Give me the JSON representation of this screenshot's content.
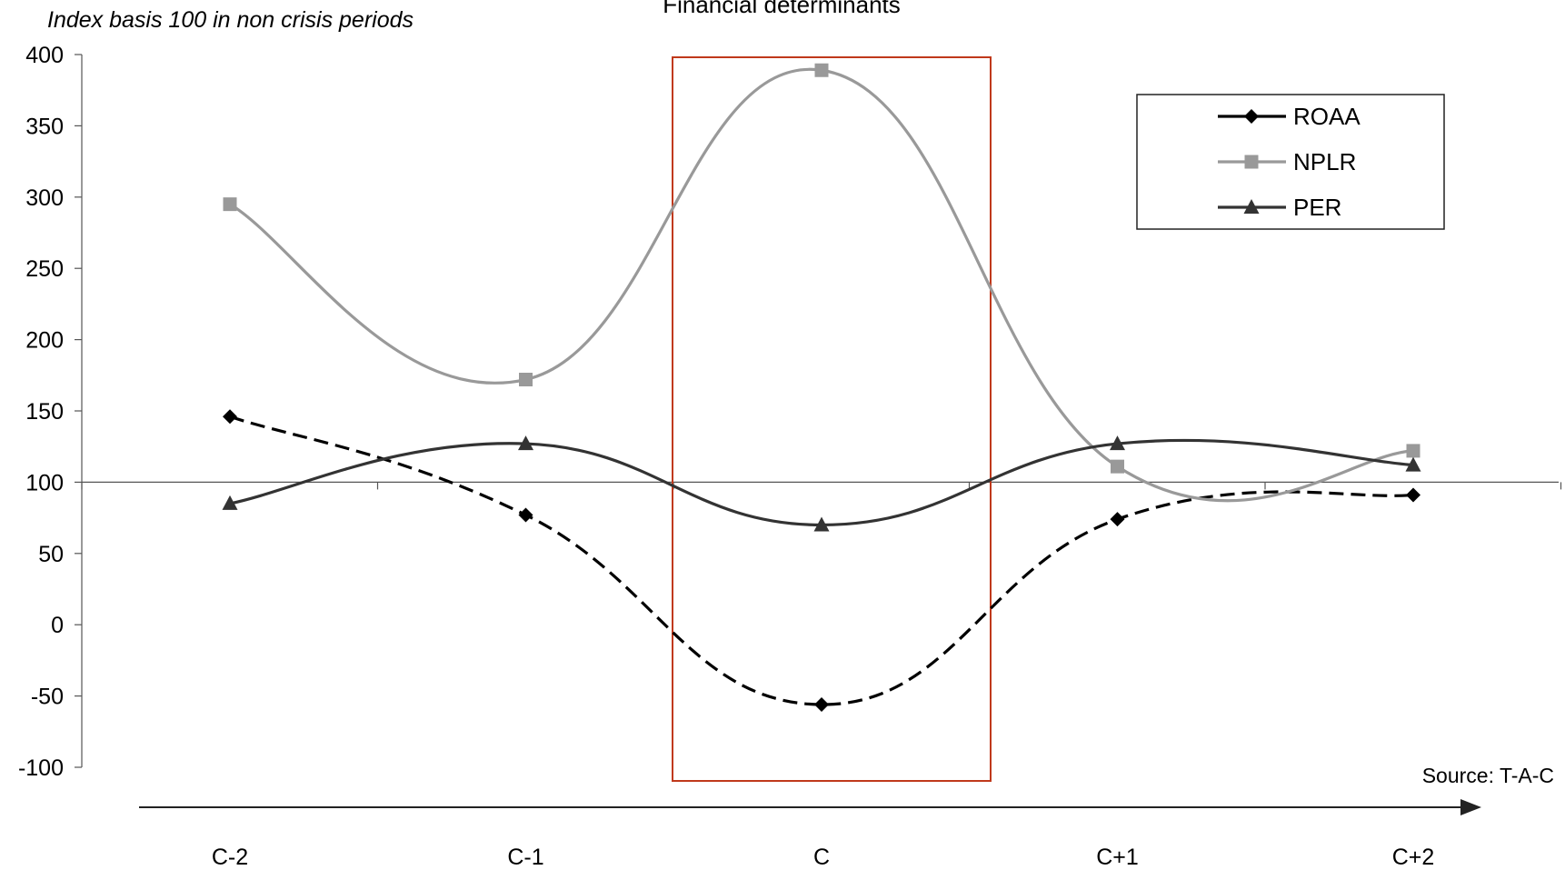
{
  "chart_data": {
    "type": "line",
    "title": "Financial determinants",
    "subtitle": "Index basis 100 in non crisis periods",
    "source": "Source: T-A-C",
    "categories": [
      "C-2",
      "C-1",
      "C",
      "C+1",
      "C+2"
    ],
    "y_ticks": [
      "400",
      "350",
      "300",
      "250",
      "200",
      "150",
      "100",
      "50",
      "0",
      "-50",
      "-100"
    ],
    "ylim": [
      -100,
      400
    ],
    "baseline": 100,
    "grid": false,
    "legend_position": "top-right",
    "highlight": {
      "category": "C",
      "color": "#c0391b"
    },
    "series": [
      {
        "name": "ROAA",
        "values": [
          146,
          77,
          -56,
          74,
          91
        ],
        "color": "#000000",
        "marker": "diamond",
        "dashed": true
      },
      {
        "name": "NPLR",
        "values": [
          295,
          172,
          389,
          111,
          122
        ],
        "color": "#999999",
        "marker": "square",
        "dashed": false
      },
      {
        "name": "PER",
        "values": [
          85,
          127,
          70,
          127,
          112
        ],
        "color": "#333333",
        "marker": "triangle",
        "dashed": false
      }
    ]
  }
}
